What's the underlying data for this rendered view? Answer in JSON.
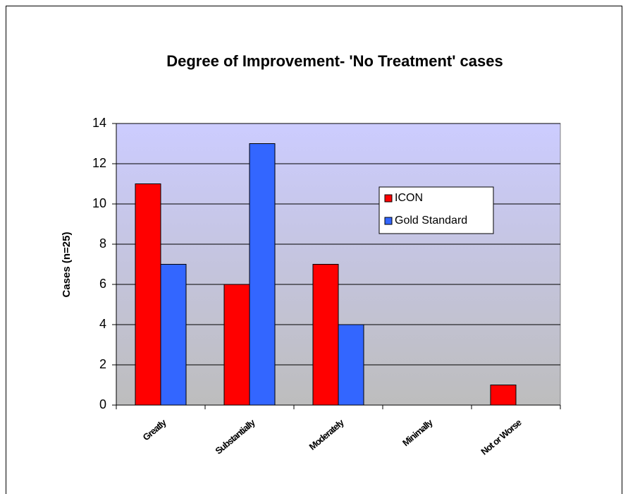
{
  "chart_data": {
    "type": "bar",
    "title": "Degree of Improvement- 'No Treatment' cases",
    "y_label": "Cases (n=25)",
    "categories": [
      "Greatly",
      "Substantially",
      "Moderately",
      "Minimally",
      "Not or Worse"
    ],
    "series": [
      {
        "name": "ICON",
        "color": "#ff0000",
        "values": [
          11,
          6,
          7,
          0,
          1
        ]
      },
      {
        "name": "Gold Standard",
        "color": "#3366ff",
        "values": [
          7,
          13,
          4,
          0,
          0
        ]
      }
    ],
    "ylim": [
      0,
      14
    ],
    "yticks": [
      0,
      2,
      4,
      6,
      8,
      10,
      12,
      14
    ],
    "grid": true
  }
}
